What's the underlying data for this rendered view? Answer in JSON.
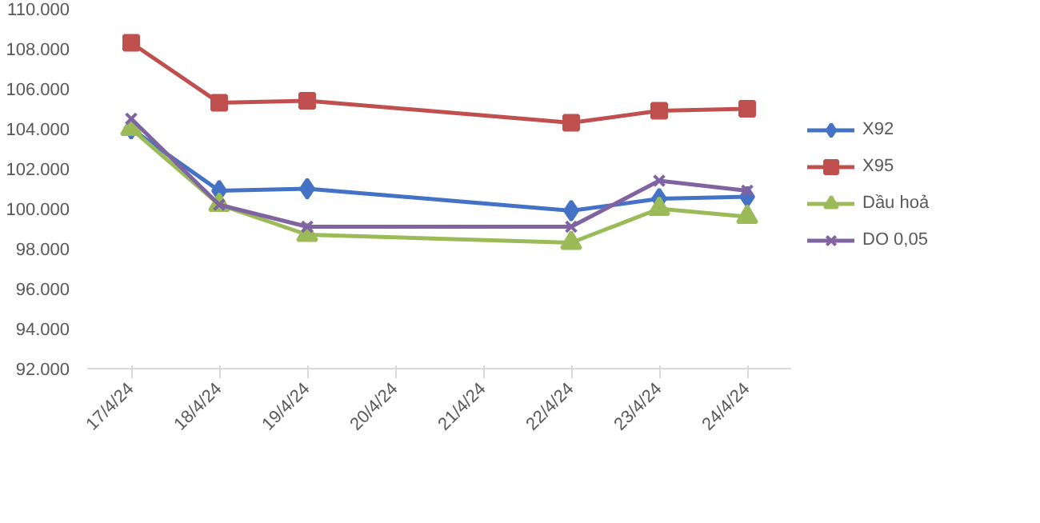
{
  "chart_data": {
    "type": "line",
    "categories": [
      "17/4/24",
      "18/4/24",
      "19/4/24",
      "20/4/24",
      "21/4/24",
      "22/4/24",
      "23/4/24",
      "24/4/24"
    ],
    "ylim": [
      92,
      110
    ],
    "yticks": [
      {
        "value": 92,
        "label": "92.000"
      },
      {
        "value": 94,
        "label": "94.000"
      },
      {
        "value": 96,
        "label": "96.000"
      },
      {
        "value": 98,
        "label": "98.000"
      },
      {
        "value": 100,
        "label": "100.000"
      },
      {
        "value": 102,
        "label": "102.000"
      },
      {
        "value": 104,
        "label": "104.000"
      },
      {
        "value": 106,
        "label": "106.000"
      },
      {
        "value": 108,
        "label": "108.000"
      },
      {
        "value": 110,
        "label": "110.000"
      }
    ],
    "grid": false,
    "legend": "right",
    "line_style": "solid",
    "series": [
      {
        "name": "X92",
        "color": "#4472c4",
        "marker": "diamond",
        "values": [
          104.0,
          100.9,
          101.0,
          null,
          null,
          99.9,
          100.5,
          100.6
        ]
      },
      {
        "name": "X95",
        "color": "#c0504d",
        "marker": "square",
        "values": [
          108.3,
          105.3,
          105.4,
          null,
          null,
          104.3,
          104.9,
          105.0
        ]
      },
      {
        "name": "Dầu hoả",
        "color": "#9bbb59",
        "marker": "triangle",
        "values": [
          104.0,
          100.2,
          98.7,
          null,
          null,
          98.3,
          100.0,
          99.6
        ]
      },
      {
        "name": "DO 0,05",
        "color": "#8064a2",
        "marker": "x",
        "values": [
          104.5,
          100.2,
          99.1,
          null,
          null,
          99.1,
          101.4,
          100.9
        ]
      }
    ]
  }
}
